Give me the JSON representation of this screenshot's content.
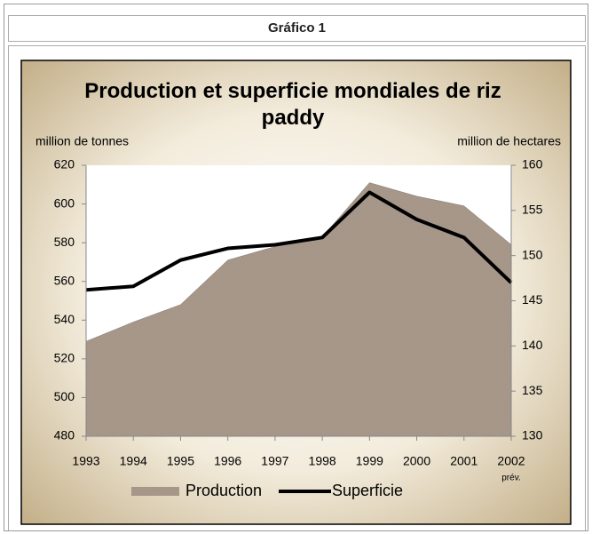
{
  "header": {
    "title": "Gráfico 1"
  },
  "chart_data": {
    "type": "area_line",
    "title": "Production et superficie mondiales de riz paddy",
    "y_label": "million de tonnes",
    "y2_label": "million de hectares",
    "categories": [
      "1993",
      "1994",
      "1995",
      "1996",
      "1997",
      "1998",
      "1999",
      "2000",
      "2001",
      "2002"
    ],
    "annotation": "prév.",
    "series": [
      {
        "name": "Production",
        "color": "#a89888",
        "values": [
          529,
          539,
          548,
          571,
          578,
          583,
          611,
          604,
          599,
          579
        ]
      },
      {
        "name": "Superficie",
        "color": "#000000",
        "axis": "y2",
        "values": [
          146.2,
          146.6,
          149.5,
          150.8,
          151.2,
          152,
          157,
          154,
          152,
          147
        ]
      }
    ],
    "ylim": [
      480,
      620
    ],
    "yticks": [
      480,
      500,
      520,
      540,
      560,
      580,
      600,
      620
    ],
    "y2lim": [
      130,
      160
    ],
    "y2ticks": [
      130,
      135,
      140,
      145,
      150,
      155,
      160
    ],
    "legend": "bottom"
  }
}
